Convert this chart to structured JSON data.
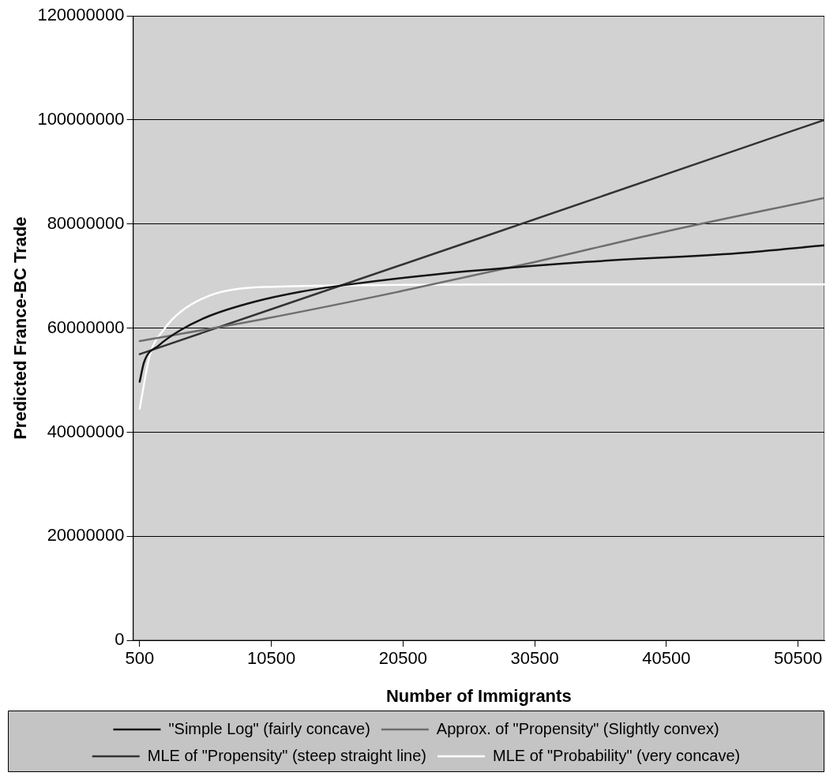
{
  "chart_data": {
    "type": "line",
    "xlabel": "Number of Immigrants",
    "ylabel": "Predicted France-BC Trade",
    "xlim": [
      0,
      52500
    ],
    "xticks": [
      500,
      10500,
      20500,
      30500,
      40500,
      50500
    ],
    "ylim": [
      0,
      120000000
    ],
    "yticks": [
      0,
      20000000,
      40000000,
      60000000,
      80000000,
      100000000,
      120000000
    ],
    "grid": "y",
    "legend": "bottom",
    "marker": "none",
    "line_style": "solid",
    "series": [
      {
        "name": "\"Simple Log\" (fairly concave)",
        "color": "#141414",
        "x": [
          500,
          840,
          1970,
          3590,
          5860,
          9270,
          12740,
          16150,
          22900,
          34390,
          45930,
          52500
        ],
        "values": [
          49700000,
          53500000,
          56700000,
          59600000,
          62400000,
          65100000,
          67000000,
          68300000,
          70300000,
          72700000,
          74400000,
          75900000
        ]
      },
      {
        "name": "Approx. of \"Propensity\" (Slightly convex)",
        "color": "#6e6e6e",
        "x": [
          500,
          10000,
          20000,
          30000,
          40000,
          52500
        ],
        "values": [
          57500000,
          61800000,
          66900000,
          72400000,
          78300000,
          85000000
        ]
      },
      {
        "name": "MLE of \"Propensity\" (steep straight line)",
        "color": "#333333",
        "x": [
          500,
          26000,
          52500
        ],
        "values": [
          55000000,
          77000000,
          100000000
        ]
      },
      {
        "name": "MLE of \"Probability\" (very concave)",
        "color": "#ffffff",
        "x": [
          500,
          1260,
          2390,
          3590,
          5860,
          8140,
          11600,
          20000,
          35000,
          52500
        ],
        "values": [
          44500000,
          54700000,
          59900000,
          63100000,
          66300000,
          67600000,
          68000000,
          68300000,
          68400000,
          68400000
        ]
      }
    ]
  }
}
